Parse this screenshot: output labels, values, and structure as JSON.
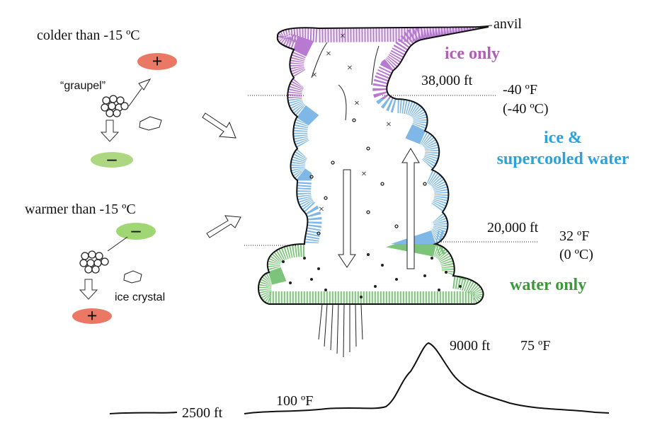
{
  "left_panel": {
    "colder": {
      "label": "colder than -15 ºC",
      "top_charge": "+",
      "particle": "“graupel”",
      "bottom_charge": "–"
    },
    "warmer": {
      "label": "warmer than -15 ºC",
      "top_charge": "–",
      "particle": "ice crystal",
      "bottom_charge": "+"
    }
  },
  "cloud": {
    "anvil": "anvil",
    "ice_only": "ice only",
    "level_high": {
      "height": "38,000 ft",
      "temp_f": "-40 ºF",
      "temp_c": "(-40 ºC)"
    },
    "mixed": {
      "line1": "ice &",
      "line2": "supercooled water"
    },
    "level_low": {
      "height": "20,000 ft",
      "temp_f": "32 ºF",
      "temp_c": "(0 ºC)"
    },
    "water_only": "water only"
  },
  "ground": {
    "peak_height": "9000 ft",
    "peak_temp": "75 ºF",
    "base_height": "2500 ft",
    "base_temp": "100 ºF"
  }
}
